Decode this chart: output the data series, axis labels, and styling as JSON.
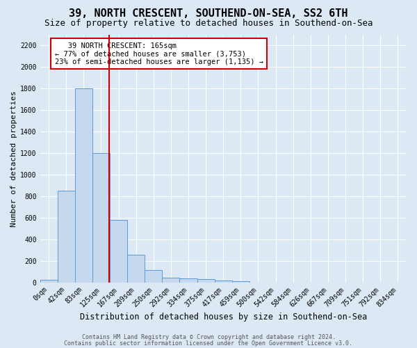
{
  "title": "39, NORTH CRESCENT, SOUTHEND-ON-SEA, SS2 6TH",
  "subtitle": "Size of property relative to detached houses in Southend-on-Sea",
  "xlabel": "Distribution of detached houses by size in Southend-on-Sea",
  "ylabel": "Number of detached properties",
  "footnote1": "Contains HM Land Registry data © Crown copyright and database right 2024.",
  "footnote2": "Contains public sector information licensed under the Open Government Licence v3.0.",
  "bin_labels": [
    "0sqm",
    "42sqm",
    "83sqm",
    "125sqm",
    "167sqm",
    "209sqm",
    "250sqm",
    "292sqm",
    "334sqm",
    "375sqm",
    "417sqm",
    "459sqm",
    "500sqm",
    "542sqm",
    "584sqm",
    "626sqm",
    "667sqm",
    "709sqm",
    "751sqm",
    "792sqm",
    "834sqm"
  ],
  "bar_heights": [
    25,
    850,
    1800,
    1200,
    580,
    255,
    115,
    45,
    40,
    30,
    18,
    10,
    0,
    0,
    0,
    0,
    0,
    0,
    0,
    0,
    0
  ],
  "bar_color": "#c5d8ed",
  "bar_edge_color": "#5b9bd5",
  "background_color": "#dce9f5",
  "plot_bg_color": "#dce9f5",
  "grid_color": "#ffffff",
  "annotation_line1": "   39 NORTH CRESCENT: 165sqm",
  "annotation_line2": "← 77% of detached houses are smaller (3,753)",
  "annotation_line3": "23% of semi-detached houses are larger (1,135) →",
  "annotation_box_edge": "#cc0000",
  "vline_color": "#cc0000",
  "ylim": [
    0,
    2300
  ],
  "yticks": [
    0,
    200,
    400,
    600,
    800,
    1000,
    1200,
    1400,
    1600,
    1800,
    2000,
    2200
  ],
  "title_fontsize": 11,
  "subtitle_fontsize": 9,
  "xlabel_fontsize": 8.5,
  "ylabel_fontsize": 8,
  "tick_fontsize": 7,
  "annot_fontsize": 7.5,
  "footnote_fontsize": 6
}
